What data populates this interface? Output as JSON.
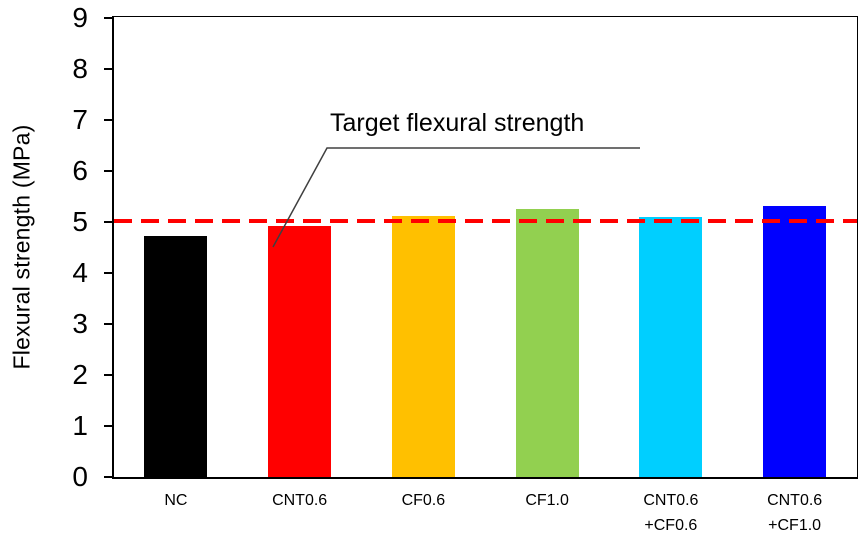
{
  "chart_data": {
    "type": "bar",
    "title": "",
    "xlabel": "",
    "ylabel": "Flexural strength (MPa)",
    "categories": [
      "NC",
      "CNT0.6",
      "CF0.6",
      "CF1.0",
      "CNT0.6\n+CF0.6",
      "CNT0.6\n+CF1.0"
    ],
    "values": [
      4.72,
      4.91,
      5.12,
      5.24,
      5.09,
      5.31
    ],
    "bar_colors": [
      "#000000",
      "#FF0000",
      "#FFC000",
      "#92D050",
      "#00CFFF",
      "#0000FF"
    ],
    "ylim": [
      0,
      9
    ],
    "yticks": [
      0,
      1,
      2,
      3,
      4,
      5,
      6,
      7,
      8,
      9
    ],
    "grid": false,
    "legend": null,
    "reference_line": {
      "value": 5.0,
      "color": "#FF0000",
      "style": "dashed",
      "label": "Target flexural strength"
    },
    "annotation": {
      "text": "Target flexural strength",
      "leader_color": "#404040"
    }
  }
}
